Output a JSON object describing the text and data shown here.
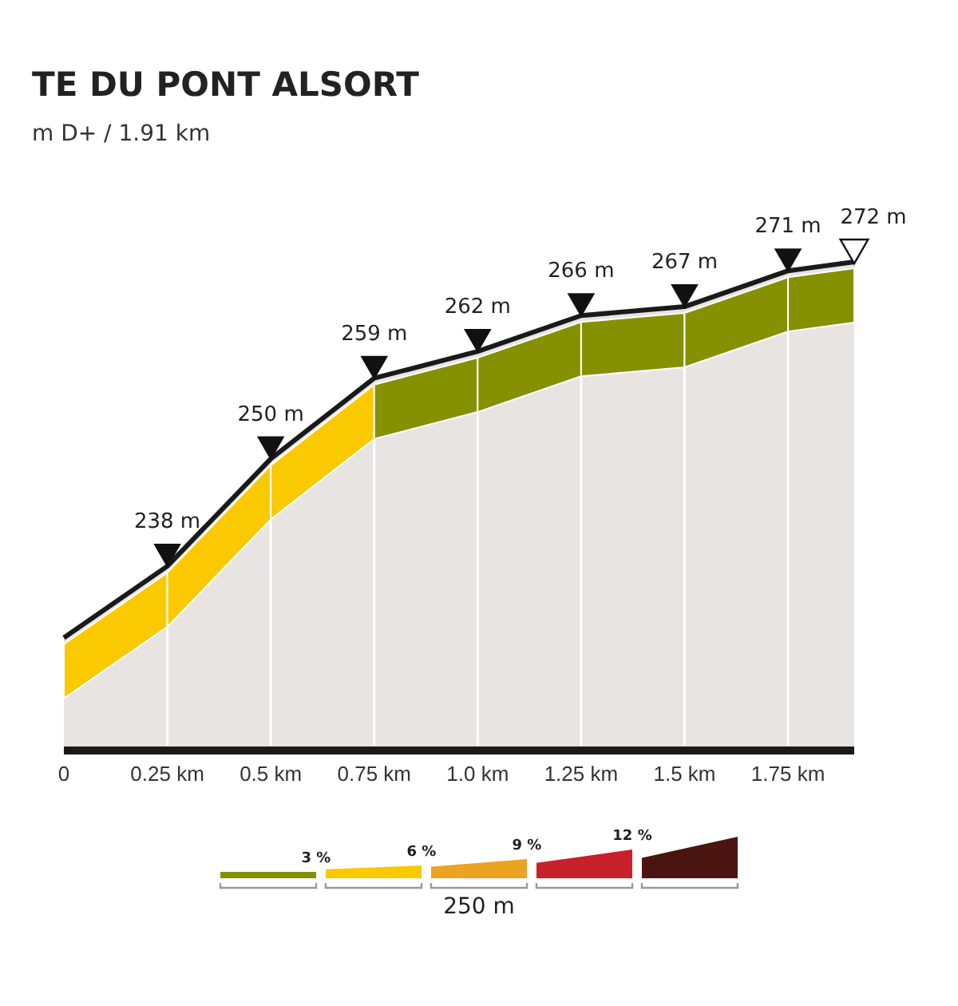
{
  "chart_data": {
    "type": "area",
    "title": "TE DU PONT ALSORT",
    "subtitle": "m D+ / 1.91 km",
    "x": [
      0,
      0.25,
      0.5,
      0.75,
      1.0,
      1.25,
      1.5,
      1.75,
      1.91
    ],
    "xlim": [
      0,
      1.91
    ],
    "xticks": [
      {
        "value": 0,
        "label": "0"
      },
      {
        "value": 0.25,
        "label": "0.25 km"
      },
      {
        "value": 0.5,
        "label": "0.5 km"
      },
      {
        "value": 0.75,
        "label": "0.75 km"
      },
      {
        "value": 1.0,
        "label": "1.0 km"
      },
      {
        "value": 1.25,
        "label": "1.25 km"
      },
      {
        "value": 1.5,
        "label": "1.5 km"
      },
      {
        "value": 1.75,
        "label": "1.75 km"
      }
    ],
    "series": [
      {
        "color": "#e8e4e2",
        "values": [
          230,
          238,
          250,
          259,
          262,
          266,
          267,
          271,
          272
        ],
        "value_labels": [
          null,
          "238 m",
          "250 m",
          "259 m",
          "262 m",
          "266 m",
          "267 m",
          "271 m",
          "272 m"
        ]
      }
    ],
    "tick_labels": "x",
    "grid": false,
    "annotations": [
      "3 %",
      "6 %",
      "9 %",
      "12 %",
      "250 m"
    ]
  }
}
